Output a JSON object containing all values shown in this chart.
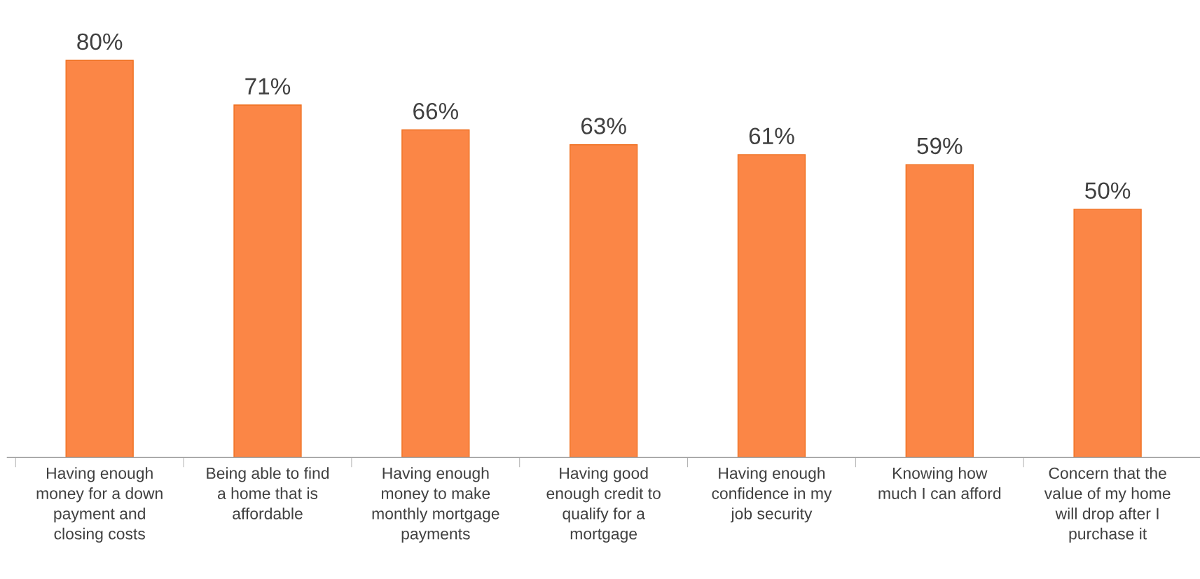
{
  "chart_data": {
    "type": "bar",
    "categories": [
      "Having enough\nmoney for a down\npayment and\nclosing costs",
      "Being able to find\na home that is\naffordable",
      "Having enough\nmoney to make\nmonthly mortgage\npayments",
      "Having good\nenough credit to\nqualify for a\nmortgage",
      "Having enough\nconfidence in my\njob security",
      "Knowing how\nmuch I can afford",
      "Concern that the\nvalue of my home\nwill drop after I\npurchase it"
    ],
    "values": [
      80,
      71,
      66,
      63,
      61,
      59,
      50
    ],
    "value_labels": [
      "80%",
      "71%",
      "66%",
      "63%",
      "61%",
      "59%",
      "50%"
    ],
    "color": "#fb8646",
    "tick_labels": "x",
    "grid": false,
    "legend": false
  }
}
